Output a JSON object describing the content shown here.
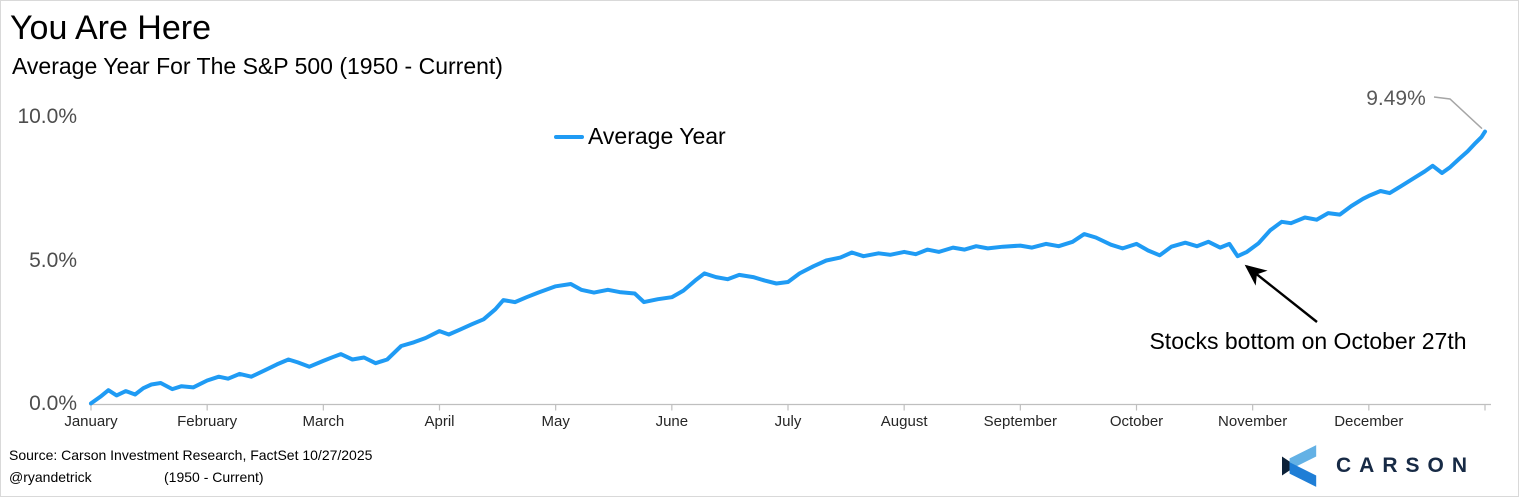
{
  "header": {
    "title": "You Are Here",
    "subtitle": "Average Year For The S&P 500 (1950 - Current)"
  },
  "legend": {
    "label": "Average Year"
  },
  "annotations": {
    "end_value_label": "9.49%",
    "note": "Stocks bottom on October 27th"
  },
  "footer": {
    "source_line": "Source: Carson Investment Research, FactSet 10/27/2025",
    "handle": "@ryandetrick",
    "range": "(1950 - Current)",
    "brand": "CARSON"
  },
  "colors": {
    "line": "#1f9bf4",
    "axis": "#bfbfbf",
    "month_label": "#262626",
    "ytick_label": "#4d4d4d",
    "callout": "#a6a6a6",
    "annotation_arrow": "#000000",
    "brand_navy": "#172a45",
    "logo_light_blue": "#63b1e5",
    "logo_blue": "#1f7ed6",
    "logo_dark": "#0d2138"
  },
  "chart_data": {
    "type": "line",
    "title": "You Are Here",
    "subtitle": "Average Year For The S&P 500 (1950 - Current)",
    "xlabel": "",
    "ylabel": "",
    "x_unit": "months elapsed (0 = Jan 1, 12 = Dec 31)",
    "y_unit": "cumulative average return %",
    "categories": [
      "January",
      "February",
      "March",
      "April",
      "May",
      "June",
      "July",
      "August",
      "September",
      "October",
      "November",
      "December"
    ],
    "yticks": [
      {
        "label": "0.0%",
        "value": 0
      },
      {
        "label": "5.0%",
        "value": 5
      },
      {
        "label": "10.0%",
        "value": 10
      }
    ],
    "ylim": [
      0,
      10
    ],
    "grid": false,
    "legend_position": "top-center",
    "series": [
      {
        "name": "Average Year",
        "end_label": "9.49%",
        "points": [
          [
            0,
            0.02
          ],
          [
            0.08,
            0.25
          ],
          [
            0.15,
            0.48
          ],
          [
            0.22,
            0.3
          ],
          [
            0.3,
            0.45
          ],
          [
            0.38,
            0.33
          ],
          [
            0.45,
            0.55
          ],
          [
            0.52,
            0.68
          ],
          [
            0.6,
            0.73
          ],
          [
            0.7,
            0.52
          ],
          [
            0.78,
            0.62
          ],
          [
            0.88,
            0.58
          ],
          [
            1,
            0.82
          ],
          [
            1.1,
            0.95
          ],
          [
            1.18,
            0.88
          ],
          [
            1.28,
            1.05
          ],
          [
            1.38,
            0.95
          ],
          [
            1.5,
            1.18
          ],
          [
            1.6,
            1.38
          ],
          [
            1.7,
            1.55
          ],
          [
            1.78,
            1.45
          ],
          [
            1.88,
            1.3
          ],
          [
            2,
            1.5
          ],
          [
            2.08,
            1.63
          ],
          [
            2.15,
            1.74
          ],
          [
            2.25,
            1.55
          ],
          [
            2.35,
            1.62
          ],
          [
            2.45,
            1.42
          ],
          [
            2.55,
            1.55
          ],
          [
            2.67,
            2.02
          ],
          [
            2.78,
            2.15
          ],
          [
            2.88,
            2.3
          ],
          [
            3,
            2.54
          ],
          [
            3.08,
            2.42
          ],
          [
            3.18,
            2.6
          ],
          [
            3.28,
            2.78
          ],
          [
            3.38,
            2.95
          ],
          [
            3.48,
            3.3
          ],
          [
            3.55,
            3.62
          ],
          [
            3.65,
            3.55
          ],
          [
            3.75,
            3.72
          ],
          [
            3.85,
            3.88
          ],
          [
            4,
            4.1
          ],
          [
            4.13,
            4.18
          ],
          [
            4.22,
            3.98
          ],
          [
            4.33,
            3.88
          ],
          [
            4.45,
            3.98
          ],
          [
            4.55,
            3.9
          ],
          [
            4.68,
            3.85
          ],
          [
            4.76,
            3.55
          ],
          [
            4.88,
            3.65
          ],
          [
            5,
            3.72
          ],
          [
            5.1,
            3.95
          ],
          [
            5.2,
            4.3
          ],
          [
            5.28,
            4.55
          ],
          [
            5.38,
            4.42
          ],
          [
            5.48,
            4.35
          ],
          [
            5.58,
            4.5
          ],
          [
            5.7,
            4.42
          ],
          [
            5.8,
            4.3
          ],
          [
            5.9,
            4.2
          ],
          [
            6,
            4.25
          ],
          [
            6.1,
            4.55
          ],
          [
            6.22,
            4.8
          ],
          [
            6.33,
            5
          ],
          [
            6.45,
            5.1
          ],
          [
            6.55,
            5.28
          ],
          [
            6.65,
            5.15
          ],
          [
            6.78,
            5.25
          ],
          [
            6.88,
            5.2
          ],
          [
            7,
            5.3
          ],
          [
            7.1,
            5.22
          ],
          [
            7.2,
            5.38
          ],
          [
            7.3,
            5.3
          ],
          [
            7.42,
            5.45
          ],
          [
            7.52,
            5.38
          ],
          [
            7.62,
            5.5
          ],
          [
            7.72,
            5.42
          ],
          [
            7.85,
            5.48
          ],
          [
            8,
            5.52
          ],
          [
            8.1,
            5.45
          ],
          [
            8.22,
            5.58
          ],
          [
            8.33,
            5.5
          ],
          [
            8.45,
            5.65
          ],
          [
            8.55,
            5.92
          ],
          [
            8.65,
            5.8
          ],
          [
            8.78,
            5.55
          ],
          [
            8.88,
            5.42
          ],
          [
            9,
            5.58
          ],
          [
            9.1,
            5.35
          ],
          [
            9.2,
            5.18
          ],
          [
            9.3,
            5.48
          ],
          [
            9.42,
            5.62
          ],
          [
            9.52,
            5.5
          ],
          [
            9.62,
            5.65
          ],
          [
            9.72,
            5.45
          ],
          [
            9.8,
            5.58
          ],
          [
            9.87,
            5.15
          ],
          [
            9.95,
            5.3
          ],
          [
            10.05,
            5.6
          ],
          [
            10.15,
            6.05
          ],
          [
            10.25,
            6.35
          ],
          [
            10.33,
            6.3
          ],
          [
            10.45,
            6.5
          ],
          [
            10.55,
            6.42
          ],
          [
            10.65,
            6.65
          ],
          [
            10.75,
            6.6
          ],
          [
            10.85,
            6.9
          ],
          [
            10.95,
            7.15
          ],
          [
            11,
            7.25
          ],
          [
            11.1,
            7.42
          ],
          [
            11.18,
            7.35
          ],
          [
            11.28,
            7.6
          ],
          [
            11.38,
            7.85
          ],
          [
            11.48,
            8.1
          ],
          [
            11.55,
            8.3
          ],
          [
            11.63,
            8.05
          ],
          [
            11.7,
            8.25
          ],
          [
            11.78,
            8.55
          ],
          [
            11.85,
            8.8
          ],
          [
            11.92,
            9.1
          ],
          [
            11.97,
            9.3
          ],
          [
            12,
            9.49
          ]
        ]
      }
    ],
    "annotations": [
      {
        "text": "Stocks bottom on October 27th",
        "points_to_month": 9.87,
        "points_to_value": 5.15
      },
      {
        "text": "9.49%",
        "points_to_month": 12,
        "points_to_value": 9.49
      }
    ]
  }
}
